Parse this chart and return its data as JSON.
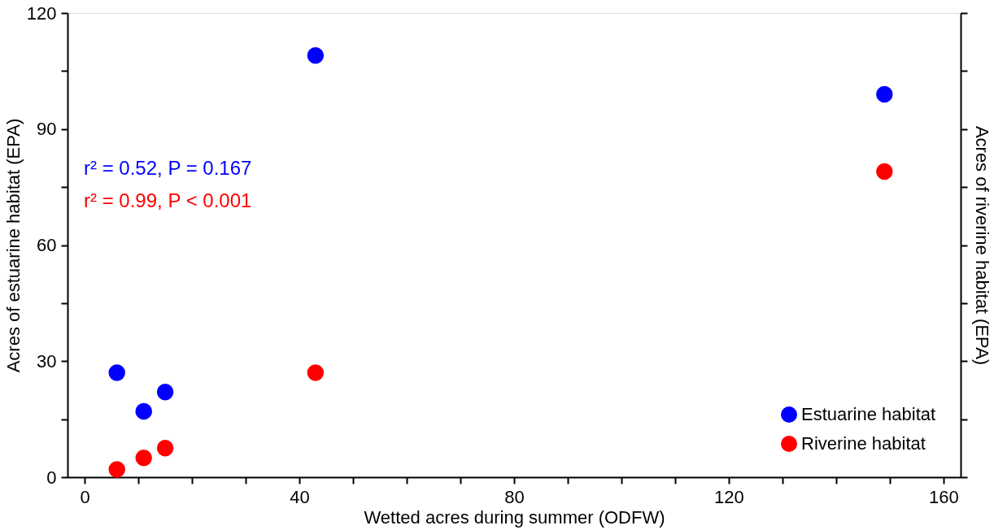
{
  "chart_data": {
    "type": "scatter",
    "xlabel": "Wetted acres during summer (ODFW)",
    "ylabel": "Acres of estuarine habitat (EPA)",
    "y2label": "Acres of riverine habitat (EPA)",
    "x": [
      6,
      11,
      15,
      43,
      149
    ],
    "series": [
      {
        "name": "Estuarine habitat",
        "color": "#0000ff",
        "values": [
          27,
          17,
          22,
          109,
          99
        ]
      },
      {
        "name": "Riverine habitat",
        "color": "#ff0000",
        "values": [
          2,
          5,
          7.5,
          27,
          79
        ]
      }
    ],
    "xlim": [
      -3.2,
      163.2
    ],
    "xticks": [
      0,
      {
        "value": 10,
        "label": null
      },
      {
        "value": 20,
        "label": null
      },
      {
        "value": 30,
        "label": null
      },
      40,
      {
        "value": 50,
        "label": null
      },
      {
        "value": 60,
        "label": null
      },
      {
        "value": 70,
        "label": null
      },
      80,
      {
        "value": 90,
        "label": null
      },
      {
        "value": 100,
        "label": null
      },
      {
        "value": 110,
        "label": null
      },
      120,
      {
        "value": 130,
        "label": null
      },
      {
        "value": 140,
        "label": null
      },
      {
        "value": 150,
        "label": null
      },
      160
    ],
    "ylim": [
      0,
      120
    ],
    "yticks": [
      0,
      {
        "value": 15,
        "label": null
      },
      30,
      {
        "value": 45,
        "label": null
      },
      60,
      {
        "value": 75,
        "label": null
      },
      90,
      {
        "value": 105,
        "label": null
      },
      120
    ],
    "annotations": [
      "r² = 0.52, P = 0.167",
      "r² = 0.99, P < 0.001"
    ],
    "legend": "bottom right",
    "marker": "circle",
    "grid": false
  }
}
